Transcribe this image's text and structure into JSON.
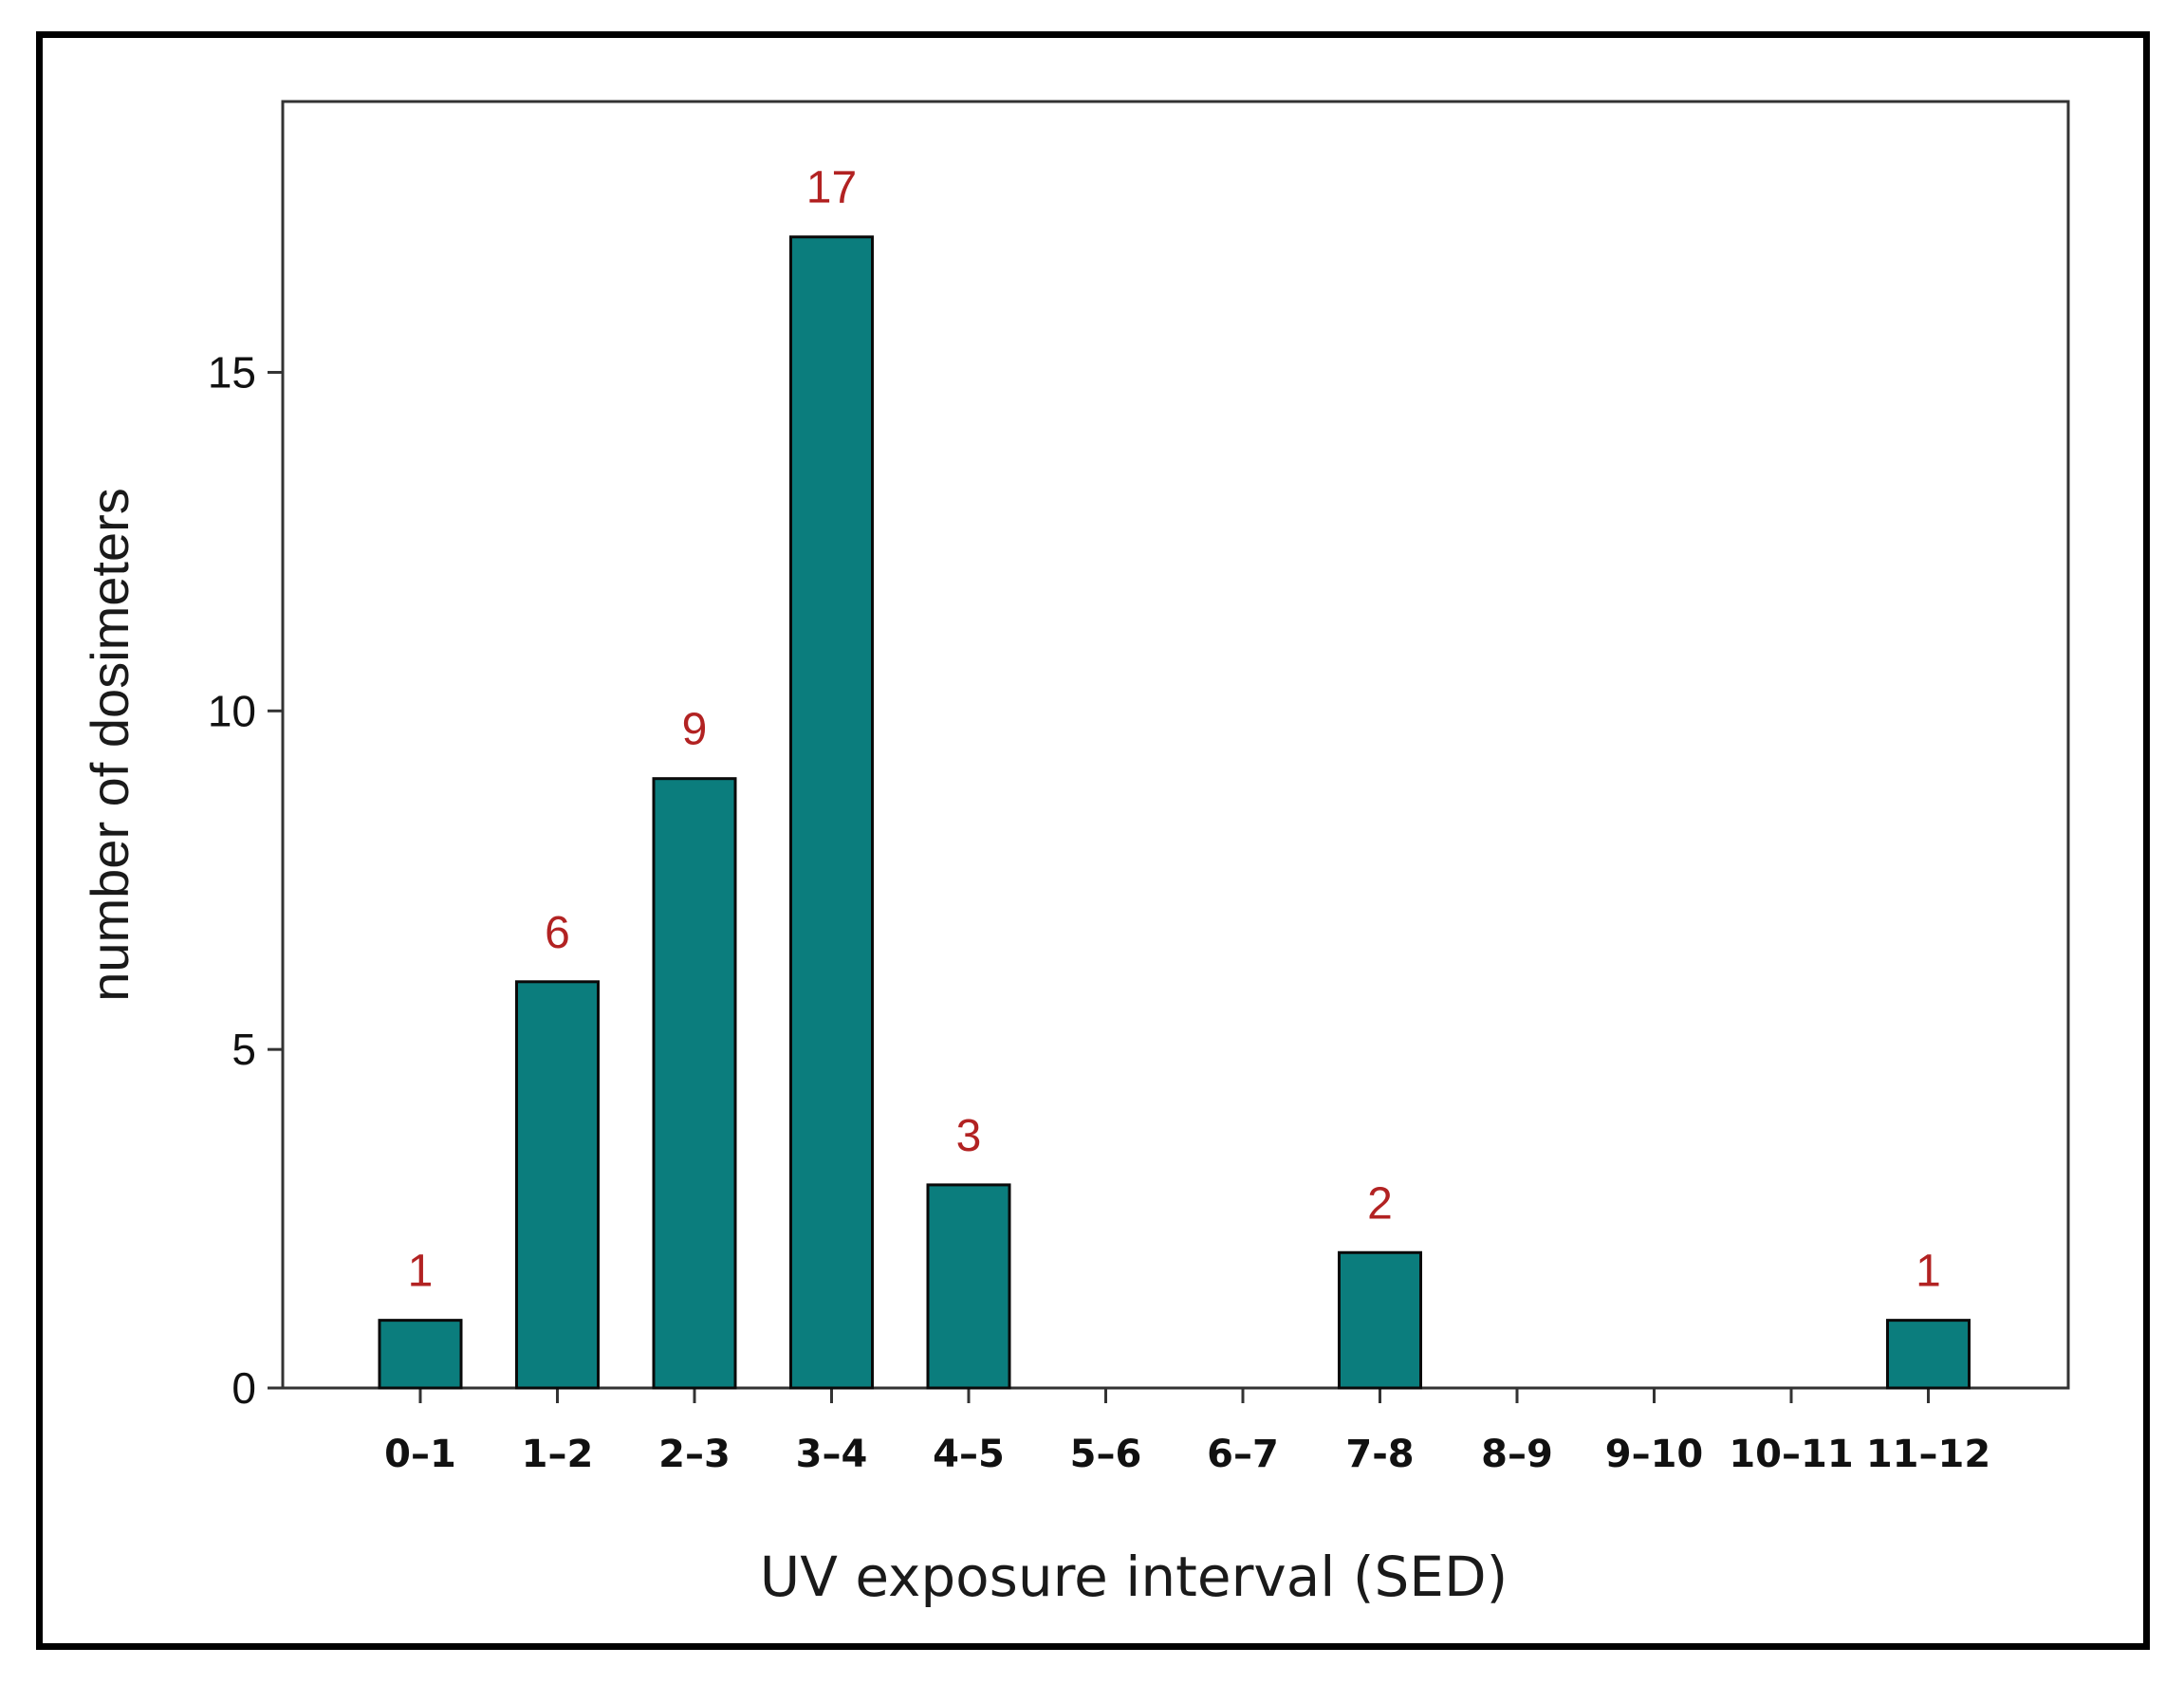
{
  "chart_data": {
    "type": "bar",
    "categories": [
      "0–1",
      "1–2",
      "2–3",
      "3–4",
      "4–5",
      "5–6",
      "6–7",
      "7-8",
      "8–9",
      "9–10",
      "10–11",
      "11–12"
    ],
    "values": [
      1,
      6,
      9,
      17,
      3,
      0,
      0,
      2,
      0,
      0,
      0,
      1
    ],
    "data_labels": [
      "1",
      "6",
      "9",
      "17",
      "3",
      "",
      "",
      "2",
      "",
      "",
      "",
      "1"
    ],
    "xlabel": "UV exposure interval (SED)",
    "ylabel": "number of dosimeters",
    "ylim": [
      0,
      19
    ],
    "yticks": [
      0,
      5,
      10,
      15
    ],
    "grid": false,
    "legend": "none",
    "colors": {
      "bar_fill": "#0b7d7d",
      "bar_stroke": "#0a0a0a",
      "data_label": "#b22222",
      "axis": "#333333"
    }
  }
}
